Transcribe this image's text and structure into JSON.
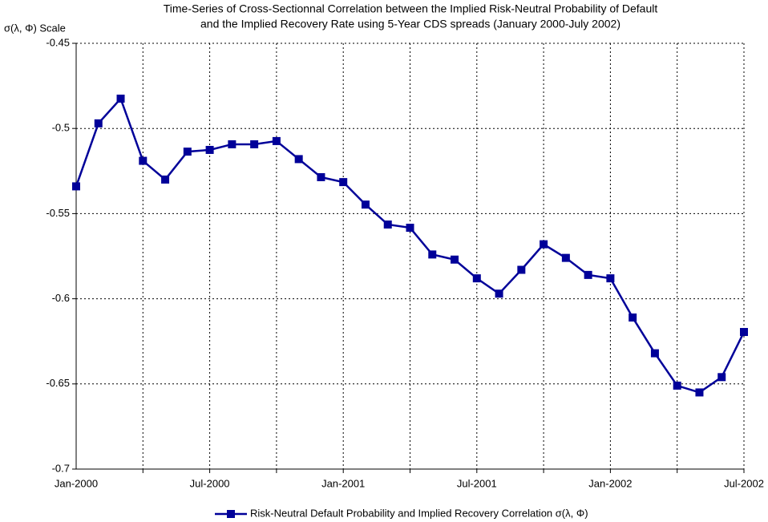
{
  "chart_data": {
    "type": "line",
    "title": [
      "Time-Series of Cross-Sectionnal Correlation between the Implied Risk-Neutral Probability of Default",
      "and the Implied Recovery Rate using 5-Year CDS spreads (January 2000-July 2002)"
    ],
    "y_label": "σ(λ, Φ) Scale",
    "categories": [
      "Jan-2000",
      null,
      null,
      null,
      null,
      null,
      "Jul-2000",
      null,
      null,
      null,
      null,
      null,
      "Jan-2001",
      null,
      null,
      null,
      null,
      null,
      "Jul-2001",
      null,
      null,
      null,
      null,
      null,
      "Jan-2002",
      null,
      null,
      null,
      null,
      null,
      "Jul-2002"
    ],
    "series": [
      {
        "name": "Risk-Neutral Default Probability and Implied Recovery Correlation σ(λ, Φ)",
        "color": "#000099",
        "values": [
          -0.534,
          -0.497,
          -0.4825,
          -0.519,
          -0.53,
          -0.5136,
          -0.5126,
          -0.5093,
          -0.5093,
          -0.5074,
          -0.518,
          -0.5286,
          -0.5315,
          -0.5447,
          -0.5564,
          -0.5583,
          -0.574,
          -0.577,
          -0.588,
          -0.597,
          -0.583,
          -0.568,
          -0.576,
          -0.586,
          -0.588,
          -0.611,
          -0.632,
          -0.651,
          -0.655,
          -0.646,
          -0.6195
        ]
      }
    ],
    "ylim": [
      -0.7,
      -0.45
    ],
    "yticks": [
      -0.7,
      -0.65,
      -0.6,
      -0.55,
      -0.5,
      -0.45
    ],
    "grid": true,
    "legend": "bottom"
  }
}
